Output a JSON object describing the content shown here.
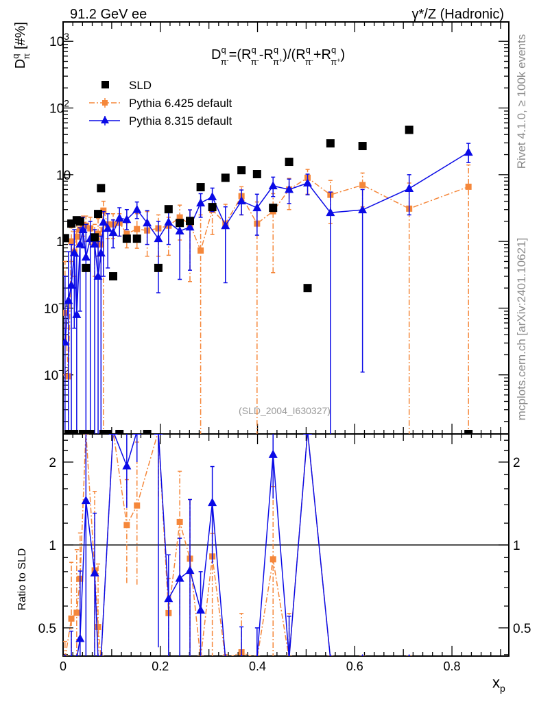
{
  "header": {
    "left": "91.2 GeV ee",
    "right": "γ*/Z (Hadronic)"
  },
  "side": {
    "rivet": "Rivet 4.1.0, ≥ 100k events",
    "mcplots": "mcplots.cern.ch [arXiv:2401.10621]"
  },
  "watermark": "(SLD_2004_I630327)",
  "colors": {
    "sld": "#000000",
    "py6": "#f5873a",
    "py8": "#0a0ae6"
  },
  "chart_data": {
    "type": "scatter",
    "title": {
      "D": "D",
      "q": "q",
      "pi": "π",
      "minus": "-",
      "plus": "+",
      "eq": "=(",
      "R": "R",
      "dash": "-",
      "mid": ")/(",
      "plus_sign": "+",
      "close": ")"
    },
    "ylabel": {
      "main": "D",
      "sup": "q",
      "sub": "π",
      "unit": " [#%]"
    },
    "ratio_ylabel": "Ratio to SLD",
    "xlabel": {
      "main": "x",
      "sub": "p"
    },
    "xlim": [
      0,
      0.917
    ],
    "ylim": [
      0.0013,
      1950
    ],
    "yscale": "log",
    "ratio_ylim": [
      0.395,
      2.53
    ],
    "legend_placement": "top-left",
    "x_ticks": [
      "0",
      "0.2",
      "0.4",
      "0.6",
      "0.8"
    ],
    "y_ticks": [
      {
        "base": "10",
        "exp": "3",
        "value": 1000
      },
      {
        "base": "10",
        "exp": "2",
        "value": 100
      },
      {
        "base": "10",
        "exp": "",
        "value": 10
      },
      {
        "base": "1",
        "exp": "",
        "value": 1
      },
      {
        "base": "10",
        "exp": "−1",
        "value": 0.1
      },
      {
        "base": "10",
        "exp": "−2",
        "value": 0.01
      }
    ],
    "ratio_ticks": [
      {
        "label": "2",
        "value": 2
      },
      {
        "label": "1",
        "value": 1
      },
      {
        "label": "0.5",
        "value": 0.5
      }
    ],
    "x": [
      0.004,
      0.011,
      0.017,
      0.023,
      0.028,
      0.035,
      0.041,
      0.047,
      0.056,
      0.065,
      0.072,
      0.078,
      0.083,
      0.092,
      0.103,
      0.116,
      0.131,
      0.152,
      0.173,
      0.196,
      0.217,
      0.24,
      0.261,
      0.283,
      0.307,
      0.334,
      0.367,
      0.399,
      0.432,
      0.465,
      0.503,
      0.55,
      0.616,
      0.712,
      0.834
    ],
    "series": [
      {
        "name": "SLD",
        "key": "sld",
        "values": [
          1.12,
          0,
          1.85,
          0,
          2.08,
          1.99,
          0,
          0.4,
          0,
          1.15,
          2.58,
          6.3,
          0,
          0,
          0.3,
          0,
          1.1,
          1.1,
          0,
          0.4,
          3.04,
          1.89,
          2.03,
          6.5,
          3.27,
          9.0,
          11.7,
          10.2,
          3.19,
          15.6,
          0.2,
          29.5,
          26.9,
          47,
          0
        ]
      },
      {
        "name": "Pythia 6.425 default",
        "key": "py6",
        "values": [
          0.085,
          0.0095,
          1.0,
          0.69,
          1.18,
          1.5,
          1.76,
          1.72,
          1.57,
          0.93,
          1.3,
          0.9,
          2.9,
          1.8,
          1.8,
          1.9,
          1.3,
          1.53,
          1.46,
          1.57,
          1.72,
          2.29,
          1.81,
          0.73,
          2.97,
          1.85,
          4.77,
          1.85,
          2.83,
          6.0,
          9.0,
          5.0,
          7.0,
          3.1,
          6.6
        ],
        "err": [
          [
            0.01,
            0.5
          ],
          [
            0,
            0.05
          ],
          [
            0.5,
            1.6
          ],
          [
            0.3,
            1.4
          ],
          [
            0.6,
            2.0
          ],
          [
            0.9,
            2.2
          ],
          [
            1.2,
            2.4
          ],
          [
            1.0,
            2.4
          ],
          [
            0.9,
            2.3
          ],
          [
            0.3,
            1.8
          ],
          [
            0.6,
            2.2
          ],
          [
            0.3,
            1.6
          ],
          [
            0,
            4.0
          ],
          [
            1.1,
            2.6
          ],
          [
            1.1,
            2.6
          ],
          [
            1.2,
            2.6
          ],
          [
            0.8,
            1.9
          ],
          [
            0.79,
            2.6
          ],
          [
            0.6,
            2.8
          ],
          [
            0.6,
            2.5
          ],
          [
            0.62,
            2.3
          ],
          [
            1.05,
            3.5
          ],
          [
            0.25,
            2.97
          ],
          [
            0,
            2.5
          ],
          [
            1.27,
            3.6
          ],
          [
            1.8,
            3.6
          ],
          [
            2.5,
            6.6
          ],
          [
            0,
            3.9
          ],
          [
            0.34,
            5.2
          ],
          [
            3.0,
            8.8
          ],
          [
            5.1,
            12
          ],
          [
            1.85,
            8.2
          ],
          [
            3.3,
            10.6
          ],
          [
            0,
            7.5
          ],
          [
            0,
            14
          ]
        ]
      },
      {
        "name": "Pythia 8.315 default",
        "key": "py8",
        "values": [
          0.031,
          0.13,
          0.22,
          0.68,
          0.08,
          0.91,
          1.5,
          0.58,
          1.1,
          0.91,
          0.3,
          0.67,
          1.94,
          1.57,
          1.36,
          2.23,
          2.13,
          3.0,
          1.89,
          1.1,
          1.94,
          1.43,
          1.64,
          3.77,
          4.66,
          1.72,
          4.04,
          3.19,
          6.8,
          6.0,
          7.5,
          2.7,
          2.97,
          6.2,
          21.7
        ],
        "err": [
          [
            0,
            0.3
          ],
          [
            0,
            0.7
          ],
          [
            0,
            0.9
          ],
          [
            0.05,
            1.5
          ],
          [
            0,
            0.6
          ],
          [
            0.09,
            1.6
          ],
          [
            0.8,
            2.3
          ],
          [
            0,
            1.8
          ],
          [
            0,
            2.0
          ],
          [
            0,
            1.5
          ],
          [
            0,
            1.0
          ],
          [
            0,
            1.2
          ],
          [
            0.3,
            2.8
          ],
          [
            0.4,
            2.6
          ],
          [
            0.8,
            2.1
          ],
          [
            1.2,
            3.2
          ],
          [
            1.5,
            3.0
          ],
          [
            2.2,
            3.9
          ],
          [
            0.9,
            2.9
          ],
          [
            0.17,
            2.0
          ],
          [
            0.9,
            2.8
          ],
          [
            0.27,
            2.0
          ],
          [
            0.37,
            2.97
          ],
          [
            2.3,
            5.2
          ],
          [
            2.8,
            6.3
          ],
          [
            0.24,
            3.3
          ],
          [
            2.5,
            5.9
          ],
          [
            1.24,
            5.1
          ],
          [
            4.7,
            9.2
          ],
          [
            3.7,
            8.6
          ],
          [
            5.0,
            10.2
          ],
          [
            0,
            5.5
          ],
          [
            0.011,
            6.0
          ],
          [
            2.5,
            10
          ],
          [
            15.2,
            29.5
          ]
        ]
      }
    ]
  }
}
